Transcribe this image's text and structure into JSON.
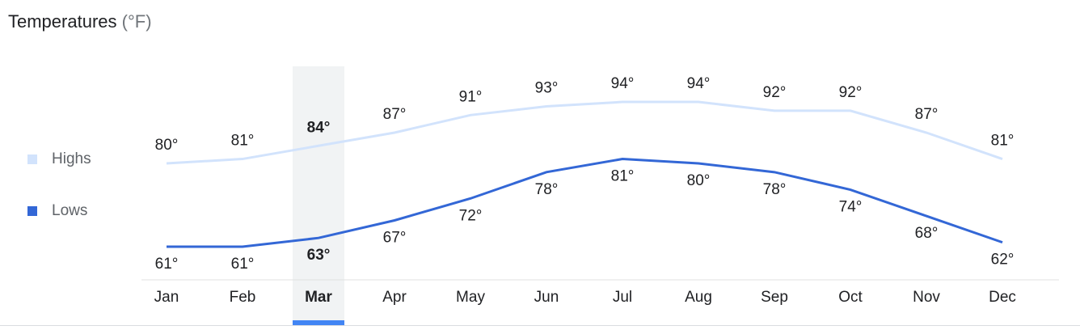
{
  "chart_data": {
    "type": "line",
    "title": "Temperatures",
    "unit": "(°F)",
    "categories": [
      "Jan",
      "Feb",
      "Mar",
      "Apr",
      "May",
      "Jun",
      "Jul",
      "Aug",
      "Sep",
      "Oct",
      "Nov",
      "Dec"
    ],
    "highlight": "Mar",
    "ylim": [
      50,
      100
    ],
    "legend": "left",
    "series": [
      {
        "name": "Highs",
        "color": "#d2e3fc",
        "values": [
          80,
          81,
          84,
          87,
          91,
          93,
          94,
          94,
          92,
          92,
          87,
          81
        ],
        "value_labels": [
          "80°",
          "81°",
          "84°",
          "87°",
          "91°",
          "93°",
          "94°",
          "94°",
          "92°",
          "92°",
          "87°",
          "81°"
        ]
      },
      {
        "name": "Lows",
        "color": "#3367d6",
        "values": [
          61,
          61,
          63,
          67,
          72,
          78,
          81,
          80,
          78,
          74,
          68,
          62
        ],
        "value_labels": [
          "61°",
          "61°",
          "63°",
          "67°",
          "72°",
          "78°",
          "81°",
          "80°",
          "78°",
          "74°",
          "68°",
          "62°"
        ]
      }
    ]
  }
}
